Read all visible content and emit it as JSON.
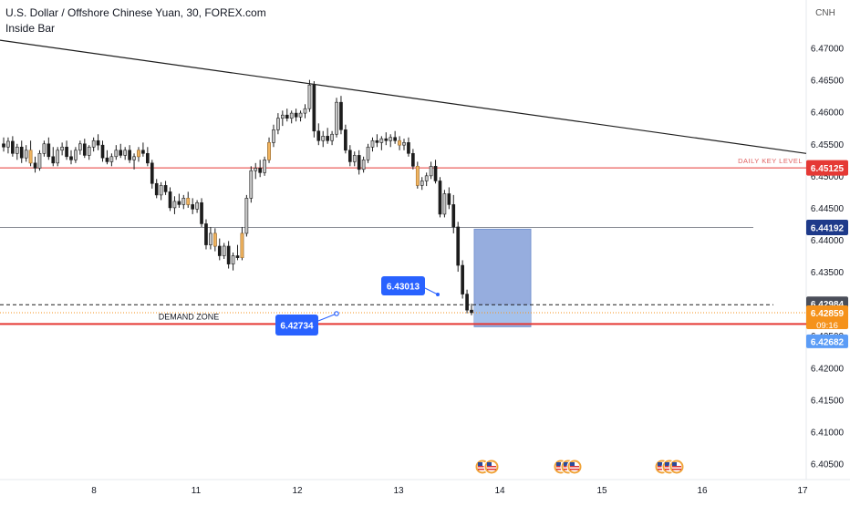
{
  "header": {
    "symbol_title": "U.S. Dollar / Offshore Chinese Yuan, 30, FOREX.com",
    "indicator": "Inside Bar"
  },
  "price_axis": {
    "currency": "CNH",
    "ticks": [
      "6.47000",
      "6.46500",
      "6.46000",
      "6.45500",
      "6.45000",
      "6.44500",
      "6.44000",
      "6.43500",
      "6.43000",
      "6.42500",
      "6.42000",
      "6.41500",
      "6.41000",
      "6.40500"
    ]
  },
  "time_axis": {
    "ticks": [
      "8",
      "11",
      "12",
      "13",
      "14",
      "15",
      "16",
      "17"
    ]
  },
  "price_tags": {
    "daily_key": "6.45125",
    "level_mid": "6.44192",
    "level_top": "6.42984",
    "last_price": "6.42859",
    "countdown": "09:16",
    "level_low": "6.42682"
  },
  "annotations": {
    "daily_key_label": "DAILY KEY LEVEL",
    "demand_zone_label": "DEMAND ZONE",
    "bubble_upper": "6.43013",
    "bubble_lower": "6.42734"
  },
  "colors": {
    "up": "#c9c9c9",
    "down": "#1c1c1c",
    "hl_up": "#f0b460",
    "hl_down": "#b07830",
    "red_line": "#e53935",
    "blue_tag": "#2962ff",
    "navy_tag": "#1e3a8a",
    "orange_tag": "#f5921b",
    "light_blue_tag": "#5b9cf6",
    "gray_tag": "#4a4e59",
    "zone_fill": "#90a9dc"
  },
  "chart_data": {
    "type": "candlestick",
    "symbol": "USDCNH",
    "x_ticks": [
      "8",
      "11",
      "12",
      "13",
      "14",
      "15",
      "16",
      "17"
    ],
    "ylim": [
      6.4025,
      6.4745
    ],
    "levels": [
      {
        "name": "DAILY KEY LEVEL",
        "value": 6.45125
      },
      {
        "value": 6.44192
      },
      {
        "value": 6.42984
      },
      {
        "name": "DEMAND ZONE",
        "value": 6.42682
      }
    ],
    "trendline": {
      "start": 6.4712,
      "end": 6.4535
    },
    "candles": [
      [
        6.455,
        6.456,
        6.4538,
        6.4545
      ],
      [
        6.4545,
        6.456,
        6.4535,
        6.4554
      ],
      [
        6.4554,
        6.4562,
        6.453,
        6.4535
      ],
      [
        6.4535,
        6.455,
        6.4525,
        6.4545
      ],
      [
        6.4545,
        6.4555,
        6.452,
        6.4528
      ],
      [
        6.4528,
        6.4548,
        6.4522,
        6.454
      ],
      [
        6.454,
        6.4555,
        6.4515,
        6.452
      ],
      [
        6.452,
        6.453,
        6.4505,
        6.4512
      ],
      [
        6.4512,
        6.454,
        6.4508,
        6.4535
      ],
      [
        6.4535,
        6.4555,
        6.453,
        6.455
      ],
      [
        6.455,
        6.456,
        6.4525,
        6.453
      ],
      [
        6.453,
        6.4545,
        6.4515,
        6.452
      ],
      [
        6.452,
        6.4545,
        6.4515,
        6.454
      ],
      [
        6.454,
        6.4552,
        6.4532,
        6.4545
      ],
      [
        6.4545,
        6.4555,
        6.4525,
        6.453
      ],
      [
        6.453,
        6.454,
        6.4518,
        6.4525
      ],
      [
        6.4525,
        6.4545,
        6.452,
        6.454
      ],
      [
        6.454,
        6.4555,
        6.4533,
        6.455
      ],
      [
        6.455,
        6.4558,
        6.4528,
        6.4532
      ],
      [
        6.4532,
        6.4548,
        6.4525,
        6.4545
      ],
      [
        6.4545,
        6.456,
        6.4538,
        6.4555
      ],
      [
        6.4555,
        6.4565,
        6.454,
        6.4548
      ],
      [
        6.4548,
        6.4555,
        6.4522,
        6.4528
      ],
      [
        6.4528,
        6.454,
        6.4518,
        6.4522
      ],
      [
        6.4522,
        6.4535,
        6.4515,
        6.453
      ],
      [
        6.453,
        6.4548,
        6.4525,
        6.454
      ],
      [
        6.454,
        6.455,
        6.4528,
        6.4532
      ],
      [
        6.4532,
        6.4545,
        6.4525,
        6.454
      ],
      [
        6.454,
        6.4548,
        6.452,
        6.4525
      ],
      [
        6.4525,
        6.4535,
        6.451,
        6.453
      ],
      [
        6.453,
        6.4545,
        6.4522,
        6.454
      ],
      [
        6.454,
        6.4552,
        6.453,
        6.4535
      ],
      [
        6.4535,
        6.4545,
        6.4515,
        6.452
      ],
      [
        6.452,
        6.4525,
        6.448,
        6.4488
      ],
      [
        6.4488,
        6.4495,
        6.4465,
        6.447
      ],
      [
        6.447,
        6.449,
        6.4462,
        6.4485
      ],
      [
        6.4485,
        6.4492,
        6.447,
        6.4475
      ],
      [
        6.4475,
        6.4482,
        6.4445,
        6.445
      ],
      [
        6.445,
        6.4468,
        6.444,
        6.446
      ],
      [
        6.446,
        6.4472,
        6.445,
        6.4455
      ],
      [
        6.4455,
        6.447,
        6.4448,
        6.4465
      ],
      [
        6.4465,
        6.4475,
        6.445,
        6.4455
      ],
      [
        6.4455,
        6.4465,
        6.444,
        6.4448
      ],
      [
        6.4448,
        6.4462,
        6.4442,
        6.4458
      ],
      [
        6.4458,
        6.4465,
        6.442,
        6.4425
      ],
      [
        6.4425,
        6.4432,
        6.4385,
        6.4392
      ],
      [
        6.4392,
        6.442,
        6.4385,
        6.441
      ],
      [
        6.441,
        6.4418,
        6.4382,
        6.439
      ],
      [
        6.439,
        6.4402,
        6.4368,
        6.4375
      ],
      [
        6.4375,
        6.4395,
        6.437,
        6.439
      ],
      [
        6.439,
        6.4398,
        6.4355,
        6.4362
      ],
      [
        6.4362,
        6.438,
        6.4352,
        6.4375
      ],
      [
        6.4375,
        6.4392,
        6.4368,
        6.4372
      ],
      [
        6.4372,
        6.442,
        6.4368,
        6.441
      ],
      [
        6.441,
        6.447,
        6.4405,
        6.4465
      ],
      [
        6.4465,
        6.4515,
        6.4458,
        6.4508
      ],
      [
        6.4508,
        6.452,
        6.4495,
        6.4512
      ],
      [
        6.4512,
        6.4525,
        6.4498,
        6.4505
      ],
      [
        6.4505,
        6.453,
        6.45,
        6.4525
      ],
      [
        6.4525,
        6.456,
        6.452,
        6.4552
      ],
      [
        6.4552,
        6.458,
        6.4545,
        6.4572
      ],
      [
        6.4572,
        6.4598,
        6.4565,
        6.459
      ],
      [
        6.459,
        6.4602,
        6.4578,
        6.4595
      ],
      [
        6.4595,
        6.4605,
        6.4585,
        6.459
      ],
      [
        6.459,
        6.4602,
        6.4582,
        6.4598
      ],
      [
        6.4598,
        6.4605,
        6.4585,
        6.4592
      ],
      [
        6.4592,
        6.4602,
        6.4585,
        6.4598
      ],
      [
        6.4598,
        6.4612,
        6.459,
        6.4605
      ],
      [
        6.4605,
        6.465,
        6.46,
        6.4642
      ],
      [
        6.4642,
        6.4648,
        6.456,
        6.457
      ],
      [
        6.457,
        6.4582,
        6.4548,
        6.4555
      ],
      [
        6.4555,
        6.457,
        6.4545,
        6.4562
      ],
      [
        6.4562,
        6.4575,
        6.455,
        6.4555
      ],
      [
        6.4555,
        6.457,
        6.4548,
        6.4565
      ],
      [
        6.4565,
        6.4622,
        6.456,
        6.4615
      ],
      [
        6.4615,
        6.4625,
        6.4565,
        6.4572
      ],
      [
        6.4572,
        6.458,
        6.4535,
        6.454
      ],
      [
        6.454,
        6.4548,
        6.4515,
        6.4522
      ],
      [
        6.4522,
        6.4538,
        6.4515,
        6.4532
      ],
      [
        6.4532,
        6.454,
        6.4502,
        6.451
      ],
      [
        6.451,
        6.453,
        6.4505,
        6.4525
      ],
      [
        6.4525,
        6.455,
        6.452,
        6.4545
      ],
      [
        6.4545,
        6.456,
        6.4538,
        6.4555
      ],
      [
        6.4555,
        6.4565,
        6.4545,
        6.4552
      ],
      [
        6.4552,
        6.4562,
        6.454,
        6.4558
      ],
      [
        6.4558,
        6.4568,
        6.4548,
        6.4555
      ],
      [
        6.4555,
        6.4565,
        6.4545,
        6.456
      ],
      [
        6.456,
        6.457,
        6.455,
        6.4555
      ],
      [
        6.4555,
        6.4562,
        6.454,
        6.4548
      ],
      [
        6.4548,
        6.4558,
        6.454,
        6.4552
      ],
      [
        6.4552,
        6.456,
        6.453,
        6.4535
      ],
      [
        6.4535,
        6.4542,
        6.451,
        6.4515
      ],
      [
        6.4515,
        6.4522,
        6.448,
        6.4485
      ],
      [
        6.4485,
        6.4498,
        6.4478,
        6.4492
      ],
      [
        6.4492,
        6.4505,
        6.4484,
        6.45
      ],
      [
        6.45,
        6.4522,
        6.4495,
        6.4515
      ],
      [
        6.4515,
        6.4525,
        6.4488,
        6.4492
      ],
      [
        6.4492,
        6.4498,
        6.4435,
        6.444
      ],
      [
        6.444,
        6.4478,
        6.4435,
        6.4472
      ],
      [
        6.4472,
        6.4482,
        6.4448,
        6.4455
      ],
      [
        6.4455,
        6.447,
        6.441,
        6.442
      ],
      [
        6.442,
        6.4428,
        6.435,
        6.436
      ],
      [
        6.436,
        6.4368,
        6.4308,
        6.4315
      ],
      [
        6.4315,
        6.4322,
        6.4285,
        6.429
      ],
      [
        6.429,
        6.43,
        6.4282,
        6.4286
      ]
    ]
  }
}
